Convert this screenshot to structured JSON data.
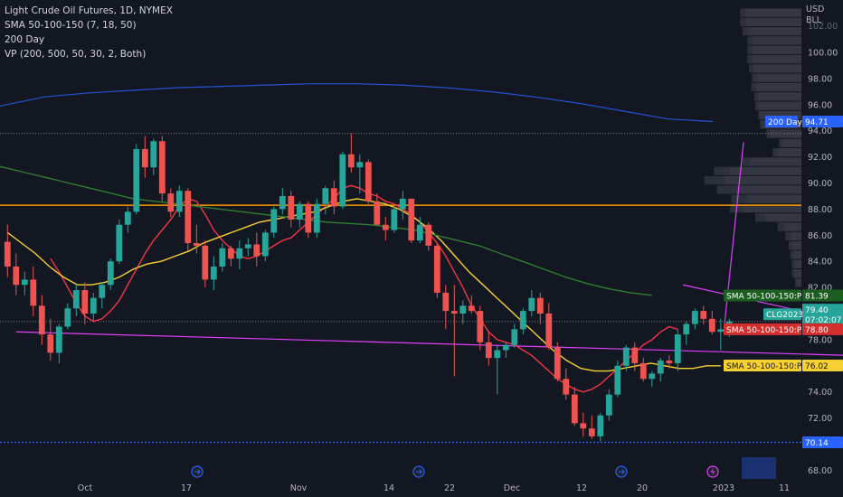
{
  "legend": {
    "title": "Light Crude Oil Futures, 1D, NYMEX",
    "line2": "SMA 50-100-150 (7, 18, 50)",
    "line3": "200 Day",
    "line4": "VP (200, 500, 50, 30, 2, Both)"
  },
  "axis": {
    "currency": "USD",
    "unit": "BLL",
    "top_partial": "102.00",
    "y_ticks": [
      "100.00",
      "98.00",
      "96.00",
      "94.00",
      "92.00",
      "90.00",
      "88.00",
      "86.00",
      "84.00",
      "82.00",
      "80.00",
      "78.00",
      "76.00",
      "74.00",
      "72.00",
      "70.00",
      "68.00"
    ],
    "x_ticks": [
      "Oct",
      "17",
      "Nov",
      "14",
      "22",
      "Dec",
      "12",
      "20",
      "2023",
      "11"
    ]
  },
  "tags": {
    "day200": {
      "label": "200 Day",
      "value": "94.71"
    },
    "sma_green": {
      "label": "SMA 50-100-150:Plot",
      "value": "81.39"
    },
    "price": {
      "label": "CLG2023",
      "value": "79.40",
      "countdown": "07:02:07"
    },
    "sma_red": {
      "label": "SMA 50-100-150:Plot",
      "value": "78.80"
    },
    "sma_yellow": {
      "label": "SMA 50-100-150:Plot",
      "value": "76.02"
    },
    "low_line": {
      "value": "70.14"
    }
  },
  "colors": {
    "background": "#131722",
    "up": "#26a69a",
    "down": "#ef5350",
    "sma_fast": "#f23645",
    "sma_mid": "#f7d031",
    "sma_slow": "#2e7d32",
    "day200": "#2962ff",
    "orange_line": "#ff9800",
    "magenta": "#e040fb"
  },
  "chart_data": {
    "type": "candlestick",
    "title": "Light Crude Oil Futures, 1D, NYMEX",
    "ylim": [
      67.4,
      104.5
    ],
    "y_unit": "USD/BLL",
    "candles": [
      [
        85.5,
        86.8,
        82.8,
        83.6
      ],
      [
        83.6,
        84.6,
        81.4,
        82.2
      ],
      [
        82.2,
        83.2,
        81.4,
        82.6
      ],
      [
        82.6,
        83.6,
        79.8,
        80.6
      ],
      [
        80.6,
        81.4,
        77.6,
        78.4
      ],
      [
        78.4,
        79.6,
        76.4,
        77.0
      ],
      [
        77.0,
        79.2,
        76.2,
        79.0
      ],
      [
        79.0,
        80.8,
        78.8,
        80.4
      ],
      [
        80.4,
        82.2,
        79.8,
        81.8
      ],
      [
        81.8,
        82.4,
        79.2,
        80.0
      ],
      [
        80.0,
        81.6,
        79.4,
        81.2
      ],
      [
        81.2,
        82.4,
        80.4,
        82.2
      ],
      [
        82.2,
        84.2,
        81.8,
        84.0
      ],
      [
        84.0,
        87.2,
        83.8,
        86.8
      ],
      [
        86.8,
        88.2,
        86.2,
        87.8
      ],
      [
        87.8,
        93.0,
        87.6,
        92.6
      ],
      [
        92.6,
        93.6,
        90.4,
        91.2
      ],
      [
        91.2,
        93.4,
        90.6,
        93.2
      ],
      [
        93.2,
        93.6,
        88.6,
        89.2
      ],
      [
        89.2,
        89.6,
        87.4,
        87.8
      ],
      [
        87.8,
        89.8,
        87.4,
        89.4
      ],
      [
        89.4,
        89.6,
        84.8,
        85.4
      ],
      [
        85.4,
        86.8,
        84.6,
        85.2
      ],
      [
        85.2,
        85.6,
        82.0,
        82.6
      ],
      [
        82.6,
        84.4,
        81.8,
        83.6
      ],
      [
        83.6,
        85.4,
        83.2,
        85.0
      ],
      [
        85.0,
        85.2,
        83.6,
        84.2
      ],
      [
        84.2,
        85.6,
        83.4,
        85.0
      ],
      [
        85.0,
        85.8,
        84.4,
        85.3
      ],
      [
        85.3,
        86.2,
        83.6,
        84.4
      ],
      [
        84.4,
        86.4,
        84.0,
        86.2
      ],
      [
        86.2,
        88.2,
        85.8,
        88.0
      ],
      [
        88.0,
        89.6,
        87.6,
        89.0
      ],
      [
        89.0,
        89.4,
        86.6,
        87.2
      ],
      [
        87.2,
        88.6,
        86.6,
        88.4
      ],
      [
        88.4,
        88.6,
        85.8,
        86.2
      ],
      [
        86.2,
        88.8,
        85.8,
        88.4
      ],
      [
        88.4,
        89.8,
        87.6,
        89.6
      ],
      [
        89.6,
        90.2,
        87.6,
        88.2
      ],
      [
        88.2,
        92.4,
        88.0,
        92.2
      ],
      [
        92.2,
        93.8,
        90.8,
        91.2
      ],
      [
        91.2,
        92.2,
        89.2,
        91.6
      ],
      [
        91.6,
        91.8,
        88.4,
        88.6
      ],
      [
        88.6,
        89.2,
        86.8,
        86.8
      ],
      [
        86.8,
        87.4,
        85.6,
        86.4
      ],
      [
        86.4,
        88.2,
        86.2,
        88.0
      ],
      [
        88.0,
        89.4,
        87.2,
        88.8
      ],
      [
        88.8,
        88.8,
        85.4,
        85.6
      ],
      [
        85.6,
        87.4,
        85.4,
        86.8
      ],
      [
        86.8,
        87.0,
        84.8,
        85.2
      ],
      [
        85.2,
        85.4,
        81.2,
        81.6
      ],
      [
        81.6,
        82.2,
        78.8,
        80.2
      ],
      [
        80.2,
        82.2,
        75.2,
        80.0
      ],
      [
        80.0,
        81.0,
        79.2,
        80.6
      ],
      [
        80.6,
        81.4,
        80.0,
        80.2
      ],
      [
        80.2,
        80.6,
        77.2,
        77.8
      ],
      [
        77.8,
        78.6,
        76.0,
        76.6
      ],
      [
        76.6,
        77.6,
        73.8,
        77.2
      ],
      [
        77.2,
        77.8,
        76.6,
        77.6
      ],
      [
        77.6,
        79.2,
        77.4,
        78.8
      ],
      [
        78.8,
        80.4,
        78.4,
        80.2
      ],
      [
        80.2,
        81.8,
        79.8,
        81.2
      ],
      [
        81.2,
        81.6,
        79.2,
        80.0
      ],
      [
        80.0,
        80.8,
        77.2,
        77.4
      ],
      [
        77.4,
        77.8,
        74.8,
        75.0
      ],
      [
        75.0,
        75.8,
        73.4,
        73.8
      ],
      [
        73.8,
        74.4,
        71.4,
        71.6
      ],
      [
        71.6,
        72.4,
        70.6,
        71.2
      ],
      [
        71.2,
        72.2,
        70.4,
        70.6
      ],
      [
        70.6,
        72.4,
        70.2,
        72.2
      ],
      [
        72.2,
        74.2,
        71.8,
        73.8
      ],
      [
        73.8,
        76.4,
        73.6,
        76.0
      ],
      [
        76.0,
        77.6,
        75.6,
        77.4
      ],
      [
        77.4,
        77.8,
        75.6,
        76.2
      ],
      [
        76.2,
        76.6,
        74.8,
        75.0
      ],
      [
        75.0,
        75.6,
        74.4,
        75.4
      ],
      [
        75.4,
        76.6,
        74.8,
        76.4
      ],
      [
        76.4,
        76.8,
        75.8,
        76.2
      ],
      [
        76.2,
        78.8,
        75.6,
        78.4
      ],
      [
        78.4,
        79.4,
        77.6,
        79.2
      ],
      [
        79.2,
        80.4,
        78.8,
        80.2
      ],
      [
        80.2,
        80.6,
        79.2,
        79.6
      ],
      [
        79.6,
        80.2,
        78.4,
        78.6
      ],
      [
        78.6,
        79.6,
        77.2,
        78.8
      ],
      [
        78.8,
        79.6,
        78.2,
        79.4
      ]
    ],
    "series": [
      {
        "name": "SMA 50-100-150:Plot",
        "values": [
          84.2,
          83.2,
          82.0,
          80.8,
          79.8,
          79.4,
          79.6,
          80.2,
          81.0,
          82.2,
          83.4,
          84.6,
          85.6,
          86.4,
          87.2,
          88.2,
          88.8,
          88.6,
          87.6,
          86.4,
          85.6,
          85.0,
          84.4,
          84.2,
          84.4,
          84.8,
          85.2,
          85.6,
          85.8,
          86.4,
          87.0,
          87.6,
          88.2,
          88.8,
          89.6,
          89.8,
          89.6,
          89.2,
          89.0,
          88.6,
          88.4,
          88.0,
          87.6,
          87.0,
          86.2,
          85.4,
          84.4,
          83.2,
          82.0,
          80.6,
          79.6,
          78.6,
          78.0,
          77.8,
          77.6,
          77.2,
          76.8,
          76.2,
          75.6,
          75.0,
          74.6,
          74.2,
          74.0,
          74.2,
          74.6,
          75.2,
          75.8,
          76.4,
          77.0,
          77.6,
          78.0,
          78.6,
          79.0,
          78.8
        ]
      },
      {
        "name": "SMA 50-100-150:Plot",
        "values": [
          86.2,
          85.4,
          84.6,
          83.6,
          82.8,
          82.2,
          82.2,
          82.4,
          82.8,
          83.4,
          83.8,
          84.0,
          84.4,
          84.8,
          85.4,
          85.8,
          86.2,
          86.6,
          87.0,
          87.2,
          87.4,
          87.6,
          87.8,
          88.2,
          88.6,
          88.8,
          88.6,
          88.4,
          88.0,
          87.4,
          86.6,
          85.6,
          84.4,
          83.2,
          82.2,
          81.2,
          80.2,
          79.2,
          78.2,
          77.2,
          76.4,
          75.8,
          75.6,
          75.6,
          75.8,
          76.0,
          76.2,
          76.0,
          75.8,
          75.8,
          76.0,
          76.0
        ]
      },
      {
        "name": "SMA 50-100-150:Plot",
        "values": [
          92.4,
          92.0,
          91.6,
          91.2,
          90.8,
          90.4,
          90.0,
          89.6,
          89.2,
          88.8,
          88.6,
          88.4,
          88.2,
          88.0,
          87.8,
          87.6,
          87.4,
          87.2,
          87.0,
          86.9,
          86.8,
          86.6,
          86.4,
          86.0,
          85.6,
          85.2,
          84.6,
          84.0,
          83.4,
          82.8,
          82.3,
          81.9,
          81.6,
          81.4
        ]
      },
      {
        "name": "200 Day",
        "values": [
          95.9,
          96.6,
          96.9,
          97.1,
          97.3,
          97.4,
          97.5,
          97.6,
          97.6,
          97.5,
          97.3,
          97.0,
          96.6,
          96.1,
          95.5,
          94.9,
          94.71
        ]
      }
    ],
    "annotations": {
      "horizontal_orange": 88.3,
      "dotted_line": 93.8,
      "low_line": 70.14,
      "price_line": 79.4,
      "trend_upper": [
        [
          78.6,
          82.2
        ],
        [
          97.8,
          79.4
        ]
      ],
      "trend_lower": [
        [
          1,
          78.6
        ],
        [
          97.8,
          76.8
        ]
      ]
    },
    "volume_profile": [
      [
        0.7,
        0.7,
        0.67,
        0.62,
        0.62,
        0.62,
        0.6,
        0.56,
        0.57,
        0.55,
        0.55,
        0.52,
        0.5,
        0.4,
        0.24,
        0.3,
        0.64,
        0.9,
        0.96,
        0.82,
        0.68,
        0.74,
        0.46,
        0.22,
        0.14,
        0.12,
        0.1,
        0.09,
        0.09,
        0.06
      ],
      [
        0.07,
        0.07,
        0.07,
        0.06,
        0.06,
        0.06,
        0.06,
        0.06,
        0.06,
        0.04,
        0.03,
        0.02,
        0.02,
        0.04,
        0.04,
        0.06,
        0.1,
        0.2,
        0.26,
        0.24,
        0.2,
        0.16,
        0.12,
        0.08,
        0.06,
        0.04,
        0.04,
        0.03,
        0.03,
        0.02
      ]
    ],
    "x_labels": [
      "Oct",
      "17",
      "Nov",
      "14",
      "22",
      "Dec",
      "12",
      "20",
      "2023",
      "11"
    ]
  }
}
